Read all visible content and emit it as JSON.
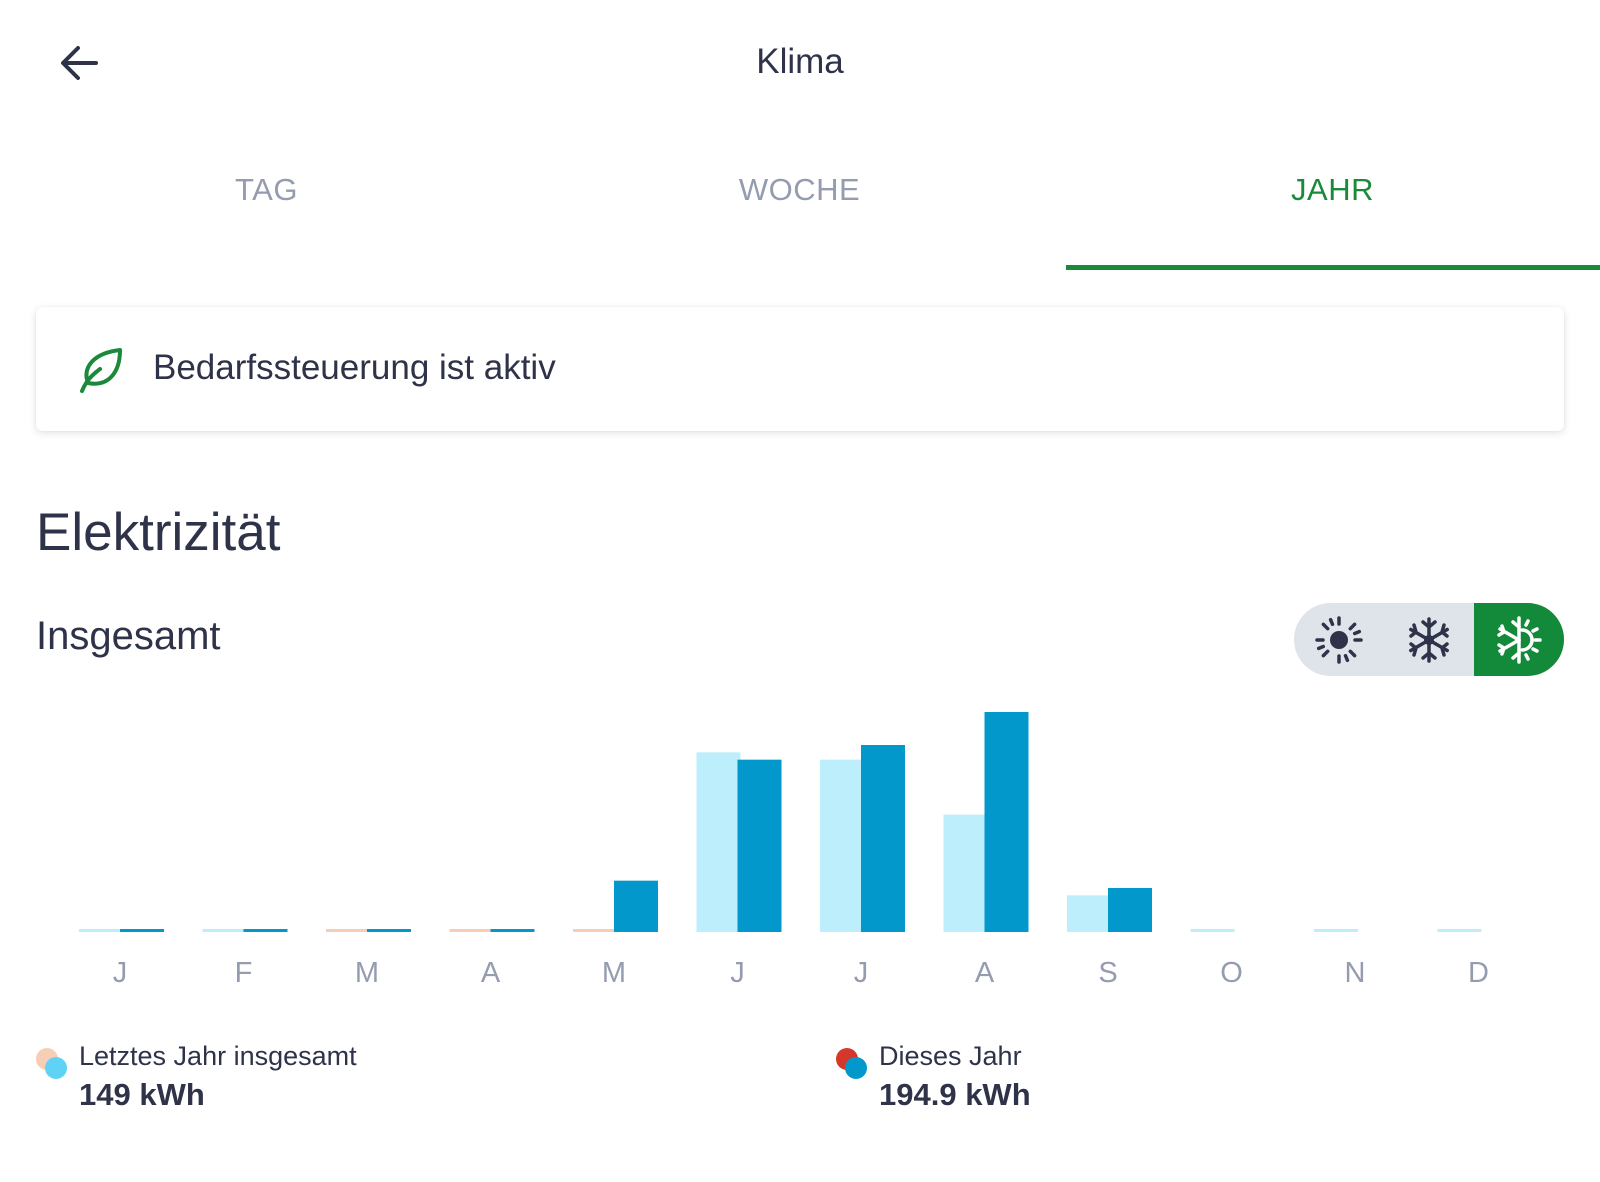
{
  "header": {
    "title": "Klima",
    "back_icon": "arrow-left-icon"
  },
  "tabs": [
    {
      "label": "TAG",
      "active": false
    },
    {
      "label": "WOCHE",
      "active": false
    },
    {
      "label": "JAHR",
      "active": true
    }
  ],
  "colors": {
    "accent_green": "#1a8a3a",
    "last_year_bar": "#bdeefb",
    "this_year_bar": "#0398cc",
    "last_year_other": "#f7cdb6",
    "this_year_other": "#d5382a",
    "tab_inactive": "#959cb0"
  },
  "status_card": {
    "icon": "leaf-icon",
    "text": "Bedarfssteuerung ist aktiv"
  },
  "section": {
    "title": "Elektrizität",
    "subtitle": "Insgesamt"
  },
  "mode_toggle": {
    "options": [
      {
        "icon": "sun-icon",
        "active": false
      },
      {
        "icon": "snowflake-icon",
        "active": false
      },
      {
        "icon": "sun-snowflake-icon",
        "active": true
      }
    ]
  },
  "chart_data": {
    "type": "bar",
    "categories": [
      "J",
      "F",
      "M",
      "A",
      "M",
      "J",
      "J",
      "A",
      "S",
      "O",
      "N",
      "D"
    ],
    "series": [
      {
        "values": [
          0.3,
          0.3,
          0.3,
          0.3,
          0.3,
          24.5,
          23.5,
          16.0,
          5.0,
          0.3,
          0.3,
          0.3
        ]
      },
      {
        "values": [
          0.3,
          0.3,
          0.3,
          0.3,
          7.0,
          23.5,
          25.5,
          30.0,
          6.0,
          0,
          0,
          0
        ]
      }
    ],
    "ylim": [
      0,
      30
    ],
    "grid": false
  },
  "legend": [
    {
      "label": "Letztes Jahr insgesamt",
      "value": "149 kWh"
    },
    {
      "label": "Dieses Jahr",
      "value": "194.9 kWh"
    }
  ]
}
